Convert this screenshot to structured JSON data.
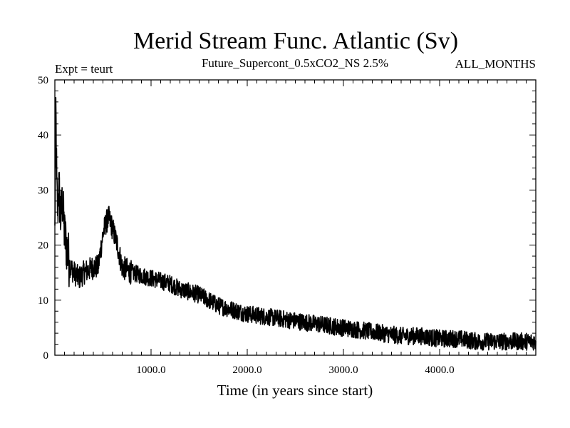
{
  "chart_data": {
    "type": "line",
    "title": "Merid Stream Func. Atlantic (Sv)",
    "subtitle_left": "Expt = teurt",
    "subtitle_center": "Future_Supercont_0.5xCO2_NS 2.5%",
    "subtitle_right": "ALL_MONTHS",
    "xlabel": "Time (in years since start)",
    "ylabel": "",
    "xlim": [
      0,
      5000
    ],
    "ylim": [
      0,
      50
    ],
    "x_ticks": [
      1000,
      2000,
      3000,
      4000
    ],
    "x_tick_labels": [
      "1000.0",
      "2000.0",
      "3000.0",
      "4000.0"
    ],
    "y_ticks": [
      0,
      10,
      20,
      30,
      40,
      50
    ],
    "y_tick_labels": [
      "0",
      "10",
      "20",
      "30",
      "40",
      "50"
    ],
    "grid": false,
    "series": [
      {
        "x": [
          0,
          10,
          20,
          30,
          40,
          60,
          80,
          100,
          130,
          160,
          200,
          250,
          300,
          350,
          400,
          450,
          500,
          530,
          560,
          600,
          650,
          700,
          800,
          900,
          1000,
          1100,
          1200,
          1300,
          1400,
          1500,
          1600,
          1700,
          1800,
          1900,
          2000,
          2200,
          2400,
          2600,
          2800,
          3000,
          3200,
          3400,
          3600,
          3800,
          4000,
          4200,
          4400,
          4600,
          4800,
          5000
        ],
        "values": [
          22,
          45,
          30,
          26,
          31,
          25,
          28,
          22,
          19,
          16,
          15,
          14,
          15,
          15.5,
          16,
          16,
          22,
          24,
          25,
          23,
          20,
          16,
          15,
          14.5,
          14,
          13.5,
          13,
          12,
          11.5,
          11,
          10,
          9,
          8.5,
          8,
          7.5,
          7,
          6.5,
          6,
          5.5,
          5,
          4.5,
          4,
          3.5,
          3.5,
          3,
          3,
          2.5,
          2.5,
          2.5,
          2.5
        ],
        "color": "#000000"
      }
    ]
  }
}
